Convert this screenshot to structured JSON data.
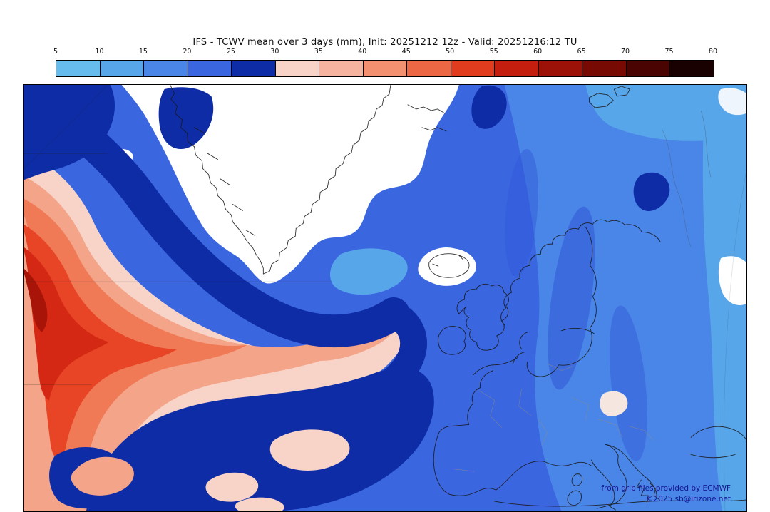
{
  "header": {
    "title": "IFS - TCWV mean over 3 days (mm), Init: 20251212 12z - Valid: 20251216:12 TU",
    "model": "IFS",
    "variable": "TCWV mean over 3 days (mm)",
    "init": "20251212 12z",
    "valid": "20251216:12 TU"
  },
  "colorbar": {
    "unit": "mm",
    "tick_labels": [
      "5",
      "10",
      "15",
      "20",
      "25",
      "30",
      "35",
      "40",
      "45",
      "50",
      "55",
      "60",
      "65",
      "70",
      "75",
      "80"
    ],
    "segment_colors": [
      "#66bcec",
      "#58a6ea",
      "#4a86e8",
      "#3a66e0",
      "#0e2ca6",
      "#f8d4c8",
      "#f6b4a0",
      "#f29070",
      "#ec6844",
      "#e23c1e",
      "#c41e0e",
      "#9c1208",
      "#780a04",
      "#4a0402",
      "#180100"
    ]
  },
  "map": {
    "palette": {
      "white_low": "#ffffff",
      "near_white": "#eef5fc",
      "blue_5_10": "#66bcec",
      "blue_10_15": "#58a6ea",
      "blue_15_20": "#4a86e8",
      "blue_20_25": "#3a66e0",
      "blue_streak": "#3156d6",
      "blue_dark_25_30": "#0e2ca6",
      "pink_30_35": "#f8d4c8",
      "salmon_35_40": "#f4a488",
      "orange_40_45": "#f07a56",
      "red_45_50": "#e84426",
      "red_50_55": "#d42814",
      "dark_red_55_60": "#a81408",
      "pale_patch": "#f6e6e0"
    },
    "credits": {
      "line1": "from grib files provided by ECMWF",
      "line2": "©2025 sb@irizone.net"
    }
  }
}
